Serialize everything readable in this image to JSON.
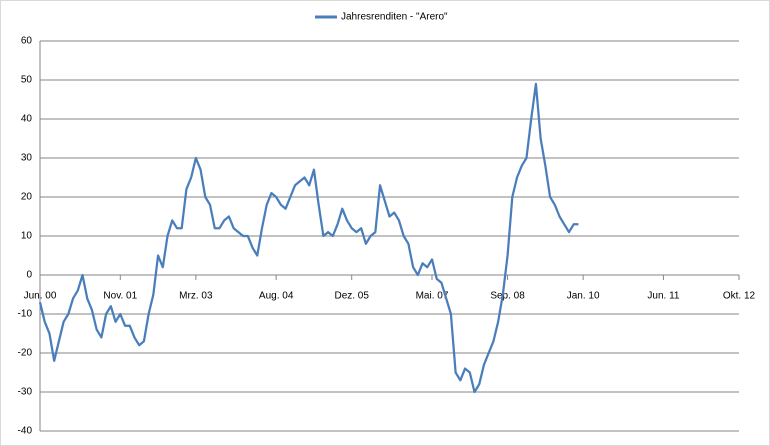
{
  "chart_data": {
    "type": "line",
    "x": [
      "2000-06",
      "2000-07",
      "2000-08",
      "2000-09",
      "2000-10",
      "2000-11",
      "2000-12",
      "2001-01",
      "2001-02",
      "2001-03",
      "2001-04",
      "2001-05",
      "2001-06",
      "2001-07",
      "2001-08",
      "2001-09",
      "2001-10",
      "2001-11",
      "2001-12",
      "2002-01",
      "2002-02",
      "2002-03",
      "2002-04",
      "2002-05",
      "2002-06",
      "2002-07",
      "2002-08",
      "2002-09",
      "2002-10",
      "2002-11",
      "2002-12",
      "2003-01",
      "2003-02",
      "2003-03",
      "2003-04",
      "2003-05",
      "2003-06",
      "2003-07",
      "2003-08",
      "2003-09",
      "2003-10",
      "2003-11",
      "2003-12",
      "2004-01",
      "2004-02",
      "2004-03",
      "2004-04",
      "2004-05",
      "2004-06",
      "2004-07",
      "2004-08",
      "2004-09",
      "2004-10",
      "2004-11",
      "2004-12",
      "2005-01",
      "2005-02",
      "2005-03",
      "2005-04",
      "2005-05",
      "2005-06",
      "2005-07",
      "2005-08",
      "2005-09",
      "2005-10",
      "2005-11",
      "2005-12",
      "2006-01",
      "2006-02",
      "2006-03",
      "2006-04",
      "2006-05",
      "2006-06",
      "2006-07",
      "2006-08",
      "2006-09",
      "2006-10",
      "2006-11",
      "2006-12",
      "2007-01",
      "2007-02",
      "2007-03",
      "2007-04",
      "2007-05",
      "2007-06",
      "2007-07",
      "2007-08",
      "2007-09",
      "2007-10",
      "2007-11",
      "2007-12",
      "2008-01",
      "2008-02",
      "2008-03",
      "2008-04",
      "2008-05",
      "2008-06",
      "2008-07",
      "2008-08",
      "2008-09",
      "2008-10",
      "2008-11",
      "2008-12",
      "2009-01",
      "2009-02",
      "2009-03",
      "2009-04",
      "2009-05",
      "2009-06",
      "2009-07",
      "2009-08",
      "2009-09",
      "2009-10",
      "2009-11",
      "2009-12"
    ],
    "series": [
      {
        "name": "Jahresrenditen - \"Arero\"",
        "color": "#4a7ebb",
        "values": [
          -7,
          -12,
          -15,
          -22,
          -17,
          -12,
          -10,
          -6,
          -4,
          0,
          -6,
          -9,
          -14,
          -16,
          -10,
          -8,
          -12,
          -10,
          -13,
          -13,
          -16,
          -18,
          -17,
          -10,
          -5,
          5,
          2,
          10,
          14,
          12,
          12,
          22,
          25,
          30,
          27,
          20,
          18,
          12,
          12,
          14,
          15,
          12,
          11,
          10,
          10,
          7,
          5,
          12,
          18,
          21,
          20,
          18,
          17,
          20,
          23,
          24,
          25,
          23,
          27,
          18,
          10,
          11,
          10,
          13,
          17,
          14,
          12,
          11,
          12,
          8,
          10,
          11,
          23,
          19,
          15,
          16,
          14,
          10,
          8,
          2,
          0,
          3,
          2,
          4,
          -1,
          -2,
          -6,
          -10,
          -25,
          -27,
          -24,
          -25,
          -30,
          -28,
          -23,
          -20,
          -17,
          -12,
          -5,
          5,
          20,
          25,
          28,
          30,
          40,
          49,
          35,
          28,
          20,
          18,
          15,
          13,
          11,
          13,
          13
        ]
      }
    ],
    "xlim": [
      "2000-06",
      "2012-10"
    ],
    "xticks": [
      {
        "value": "2000-06",
        "label": "Jun. 00"
      },
      {
        "value": "2001-11",
        "label": "Nov. 01"
      },
      {
        "value": "2003-03",
        "label": "Mrz. 03"
      },
      {
        "value": "2004-08",
        "label": "Aug. 04"
      },
      {
        "value": "2005-12",
        "label": "Dez. 05"
      },
      {
        "value": "2007-05",
        "label": "Mai. 07"
      },
      {
        "value": "2008-09",
        "label": "Sep. 08"
      },
      {
        "value": "2010-01",
        "label": "Jan. 10"
      },
      {
        "value": "2011-06",
        "label": "Jun. 11"
      },
      {
        "value": "2012-10",
        "label": "Okt. 12"
      }
    ],
    "ylim": [
      -40,
      60
    ],
    "yticks": [
      -40,
      -30,
      -20,
      -10,
      0,
      10,
      20,
      30,
      40,
      50,
      60
    ],
    "grid": true,
    "legend": "top"
  }
}
